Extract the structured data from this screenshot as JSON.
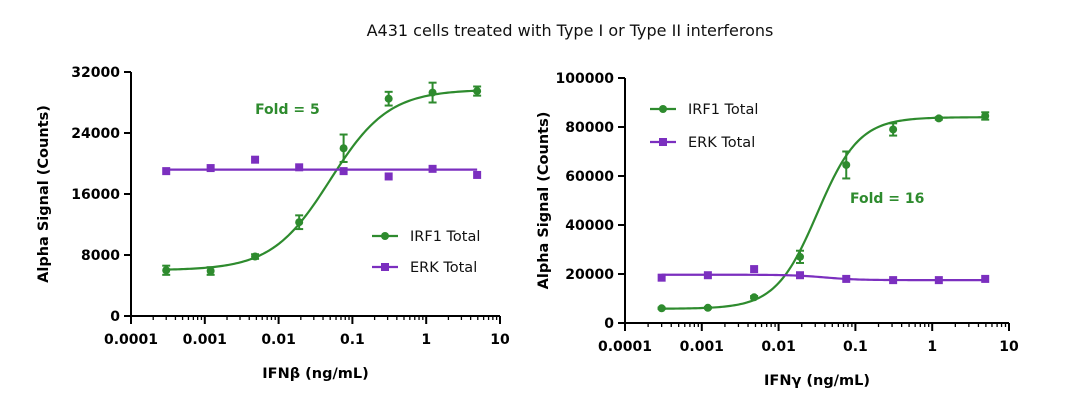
{
  "figure_title": "A431 cells treated with Type I or Type II interferons",
  "colors": {
    "irf1": "#2e8b2e",
    "erk": "#7b2fbf"
  },
  "chart_data": [
    {
      "type": "scatter",
      "title": "",
      "xlabel": "IFNβ (ng/mL)",
      "ylabel": "Alpha Signal (Counts)",
      "xscale": "log",
      "xlim": [
        0.0001,
        10
      ],
      "ylim": [
        0,
        32000
      ],
      "x_ticks": [
        0.0001,
        0.001,
        0.01,
        0.1,
        1,
        10
      ],
      "x_tick_labels": [
        "0.0001",
        "0.001",
        "0.01",
        "0.1",
        "1",
        "10"
      ],
      "y_ticks": [
        0,
        8000,
        16000,
        24000,
        32000
      ],
      "y_tick_labels": [
        "0",
        "8000",
        "16000",
        "24000",
        "32000"
      ],
      "legend_position": "lower-right",
      "annotation": {
        "text": "Fold = 5",
        "x": 0.0048,
        "y": 26500,
        "color": "#2e8b2e"
      },
      "series": [
        {
          "name": "IRF1 Total",
          "color": "#2e8b2e",
          "marker": "circle",
          "x": [
            0.0003,
            0.0012,
            0.0048,
            0.019,
            0.076,
            0.31,
            1.22,
            4.9
          ],
          "y": [
            6000,
            5900,
            7800,
            12300,
            22000,
            28500,
            29300,
            29500
          ],
          "err": [
            600,
            500,
            300,
            900,
            1800,
            900,
            1300,
            600
          ],
          "fit": {
            "bottom": 6000,
            "top": 29700,
            "ec50": 0.05,
            "hill": 1.1
          }
        },
        {
          "name": "ERK Total",
          "color": "#7b2fbf",
          "marker": "square",
          "x": [
            0.0003,
            0.0012,
            0.0048,
            0.019,
            0.076,
            0.31,
            1.22,
            4.9
          ],
          "y": [
            19000,
            19400,
            20500,
            19500,
            19000,
            18300,
            19300,
            18500
          ],
          "err": [
            0,
            0,
            0,
            0,
            0,
            0,
            0,
            0
          ],
          "fit": {
            "flat": 19200
          }
        }
      ]
    },
    {
      "type": "scatter",
      "title": "",
      "xlabel": "IFNγ (ng/mL)",
      "ylabel": "Alpha Signal (Counts)",
      "xscale": "log",
      "xlim": [
        0.0001,
        10
      ],
      "ylim": [
        0,
        100000
      ],
      "x_ticks": [
        0.0001,
        0.001,
        0.01,
        0.1,
        1,
        10
      ],
      "x_tick_labels": [
        "0.0001",
        "0.001",
        "0.01",
        "0.1",
        "1",
        "10"
      ],
      "y_ticks": [
        0,
        20000,
        40000,
        60000,
        80000,
        100000
      ],
      "y_tick_labels": [
        "0",
        "20000",
        "40000",
        "60000",
        "80000",
        "100000"
      ],
      "legend_position": "top-left",
      "annotation": {
        "text": "Fold = 16",
        "x": 0.085,
        "y": 49000,
        "color": "#2e8b2e"
      },
      "series": [
        {
          "name": "IRF1 Total",
          "color": "#2e8b2e",
          "marker": "circle",
          "x": [
            0.0003,
            0.0012,
            0.0048,
            0.019,
            0.076,
            0.31,
            1.22,
            4.9
          ],
          "y": [
            6000,
            6200,
            10500,
            27000,
            64500,
            79000,
            83500,
            84500
          ],
          "err": [
            300,
            300,
            500,
            2500,
            5500,
            2500,
            500,
            1500
          ],
          "fit": {
            "bottom": 5800,
            "top": 84000,
            "ec50": 0.032,
            "hill": 1.6
          }
        },
        {
          "name": "ERK Total",
          "color": "#7b2fbf",
          "marker": "square",
          "x": [
            0.0003,
            0.0012,
            0.0048,
            0.019,
            0.076,
            0.31,
            1.22,
            4.9
          ],
          "y": [
            18500,
            19500,
            22000,
            19500,
            18000,
            17500,
            17500,
            18000
          ],
          "err": [
            0,
            0,
            0,
            0,
            0,
            0,
            0,
            0
          ],
          "fit": {
            "bottom": 19700,
            "top": 17500,
            "ec50": 0.04,
            "hill": 2.0
          }
        }
      ]
    }
  ]
}
